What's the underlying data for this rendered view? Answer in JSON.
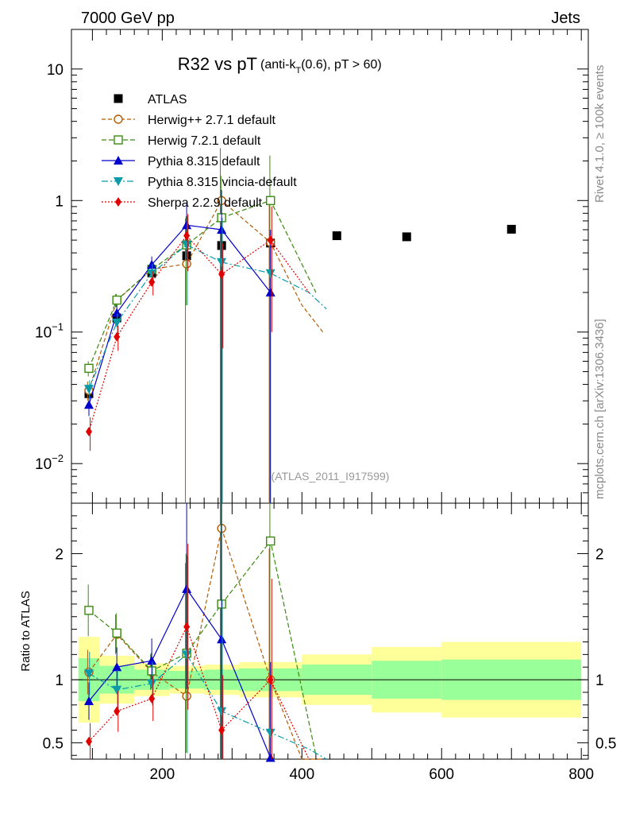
{
  "header": {
    "energy": "7000 GeV pp",
    "category": "Jets",
    "rivet": "Rivet 4.1.0, ≥ 100k events",
    "mcplots": "mcplots.cern.ch [arXiv:1306.3436]",
    "analysis_id": "(ATLAS_2011_I917599)"
  },
  "chart_data": {
    "type": "scatter",
    "title": "R32 vs pT",
    "subtitle_parts": [
      "(anti-k",
      "T",
      "(0.6), pT > 60)"
    ],
    "xlabel": "",
    "ylabel_ratio": "Ratio to ATLAS",
    "xlim": [
      70,
      810
    ],
    "ylim_main": [
      0.005,
      20
    ],
    "ylim_ratio": [
      0.37,
      2.4
    ],
    "yscale": "log",
    "x_ticks": [
      "200",
      "400",
      "600",
      "800"
    ],
    "y_ticks_main": [
      {
        "base": "10",
        "exp": "−2"
      },
      {
        "base": "10",
        "exp": "−1"
      },
      {
        "base": "1",
        "exp": ""
      },
      {
        "base": "10",
        "exp": ""
      }
    ],
    "y_ticks_ratio": [
      "0.5",
      "1",
      "2"
    ],
    "reference": {
      "name": "ATLAS",
      "color": "#000000",
      "x": [
        95,
        135,
        185,
        235,
        285,
        355,
        450,
        550,
        700
      ],
      "y": [
        0.034,
        0.128,
        0.282,
        0.38,
        0.455,
        0.475,
        0.54,
        0.53,
        0.605
      ],
      "bins": [
        [
          80,
          110
        ],
        [
          110,
          160
        ],
        [
          160,
          210
        ],
        [
          210,
          260
        ],
        [
          260,
          310
        ],
        [
          310,
          400
        ],
        [
          400,
          500
        ],
        [
          500,
          600
        ],
        [
          600,
          800
        ]
      ],
      "band_stat": [
        0.17,
        0.11,
        0.08,
        0.07,
        0.08,
        0.09,
        0.12,
        0.15,
        0.16
      ],
      "band_total": [
        0.34,
        0.19,
        0.13,
        0.11,
        0.12,
        0.14,
        0.2,
        0.26,
        0.3
      ]
    },
    "series": [
      {
        "name": "Herwig++ 2.7.1 default",
        "color": "#b35a00",
        "marker": "circle-open",
        "dash": "5,3",
        "x": [
          95,
          135,
          185,
          235,
          285,
          355,
          400,
          430
        ],
        "y": [
          0.036,
          0.174,
          0.3,
          0.33,
          1.0,
          0.48,
          0.16,
          0.1
        ],
        "err": [
          0.006,
          0.02,
          0.04,
          0.4,
          1.5,
          0.5,
          0,
          0
        ],
        "ratio": [
          1.06,
          1.36,
          1.06,
          0.87,
          2.2,
          1.0,
          0.34,
          0.22
        ]
      },
      {
        "name": "Herwig 7.2.1 default",
        "color": "#3a8a10",
        "marker": "square-open",
        "dash": "6,3",
        "x": [
          95,
          135,
          185,
          235,
          285,
          355,
          420
        ],
        "y": [
          0.053,
          0.175,
          0.3,
          0.46,
          0.74,
          1.0,
          0.2
        ],
        "err": [
          0.007,
          0.02,
          0.04,
          0.3,
          0.8,
          1.2,
          0
        ],
        "ratio": [
          1.55,
          1.37,
          1.07,
          1.21,
          1.6,
          2.1,
          0.4
        ]
      },
      {
        "name": "Pythia 8.315 default",
        "color": "#0000cc",
        "marker": "triangle-up",
        "dash": "",
        "x": [
          95,
          135,
          185,
          235,
          285,
          355
        ],
        "y": [
          0.028,
          0.14,
          0.325,
          0.65,
          0.6,
          0.2
        ],
        "err": [
          0.005,
          0.02,
          0.05,
          0.3,
          0.6,
          0.4
        ],
        "ratio": [
          0.83,
          1.1,
          1.15,
          1.72,
          1.32,
          0.38
        ]
      },
      {
        "name": "Pythia 8.315 vincia-default",
        "color": "#0a9aa8",
        "marker": "triangle-down",
        "dash": "8,3,2,3",
        "x": [
          95,
          135,
          185,
          235,
          285,
          355,
          410,
          435
        ],
        "y": [
          0.037,
          0.118,
          0.28,
          0.46,
          0.34,
          0.28,
          0.2,
          0.15
        ],
        "err": [
          0.006,
          0.02,
          0.05,
          0.3,
          0.4,
          0,
          0,
          0
        ],
        "ratio": [
          1.05,
          0.92,
          0.97,
          1.2,
          0.75,
          0.58,
          0.45,
          0.37
        ]
      },
      {
        "name": "Sherpa 2.2.9 default",
        "color": "#e00000",
        "marker": "diamond",
        "dash": "2,2",
        "x": [
          95,
          135,
          185,
          235,
          285,
          355,
          410
        ],
        "y": [
          0.0175,
          0.092,
          0.24,
          0.54,
          0.275,
          0.5,
          0.2
        ],
        "err": [
          0.005,
          0.02,
          0.05,
          0.25,
          0.2,
          0.4,
          0
        ],
        "ratio": [
          0.51,
          0.75,
          0.85,
          1.42,
          0.6,
          1.0,
          0.37
        ]
      }
    ]
  }
}
